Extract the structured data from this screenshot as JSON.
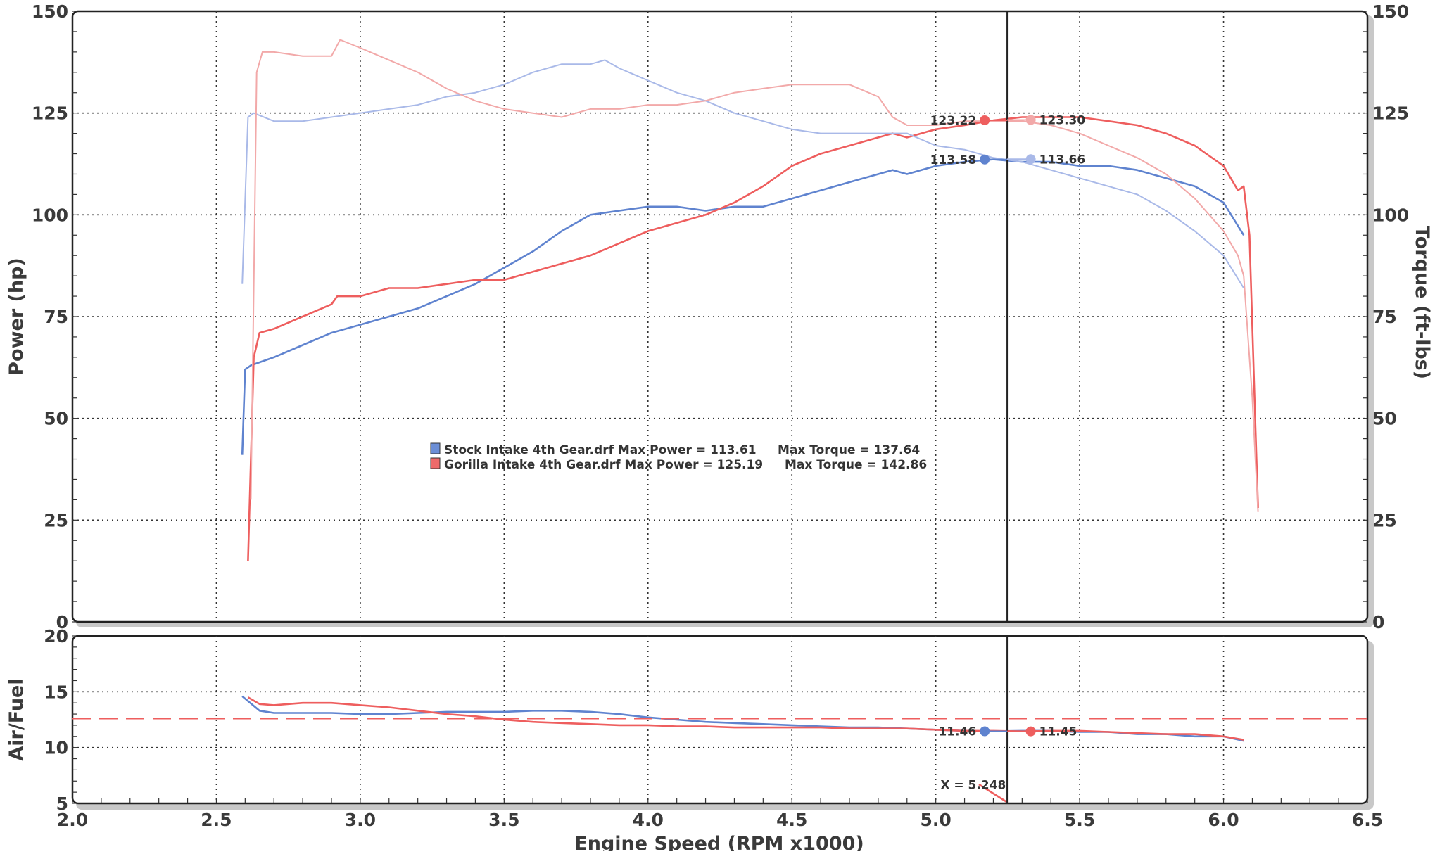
{
  "chart_data": [
    {
      "type": "line",
      "panel": "top",
      "xlabel": "Engine Speed (RPM x1000)",
      "ylabel": "Power (hp)",
      "ylabel_right": "Torque (ft-lbs)",
      "xlim": [
        2.0,
        6.5
      ],
      "ylim": [
        0,
        150
      ],
      "ylim_right": [
        0,
        150
      ],
      "x_ticks": [
        "2.0",
        "2.5",
        "3.0",
        "3.5",
        "4.0",
        "4.5",
        "5.0",
        "5.5",
        "6.0",
        "6.5"
      ],
      "y_ticks": [
        "0",
        "25",
        "50",
        "75",
        "100",
        "125",
        "150"
      ],
      "y_ticks_right": [
        "0",
        "25",
        "50",
        "75",
        "100",
        "125",
        "150"
      ],
      "grid": "dotted",
      "legend_position": "center",
      "legend": [
        {
          "color": "#6b8ed6",
          "text": "Stock Intake 4th Gear.drf Max Power = 113.61",
          "extra": "Max Torque = 137.64"
        },
        {
          "color": "#ee6a6a",
          "text": "Gorilla Intake 4th Gear.drf Max Power = 125.19",
          "extra": "Max Torque = 142.86"
        }
      ],
      "cursor_x": 5.248,
      "series": [
        {
          "name": "Stock Intake 4th Gear.drf",
          "measure": "power",
          "color": "#5f83cf",
          "x": [
            2.59,
            2.6,
            2.62,
            2.7,
            2.8,
            2.9,
            3.0,
            3.1,
            3.2,
            3.3,
            3.4,
            3.5,
            3.6,
            3.7,
            3.8,
            3.9,
            4.0,
            4.1,
            4.2,
            4.3,
            4.4,
            4.5,
            4.6,
            4.7,
            4.8,
            4.85,
            4.9,
            5.0,
            5.1,
            5.2,
            5.3,
            5.4,
            5.5,
            5.6,
            5.7,
            5.8,
            5.9,
            6.0,
            6.07
          ],
          "y": [
            41,
            62,
            63,
            65,
            68,
            71,
            73,
            75,
            77,
            80,
            83,
            87,
            91,
            96,
            100,
            101,
            102,
            102,
            101,
            102,
            102,
            104,
            106,
            108,
            110,
            111,
            110,
            112,
            113,
            113.6,
            113,
            113,
            112,
            112,
            111,
            109,
            107,
            103,
            95
          ]
        },
        {
          "name": "Gorilla Intake 4th Gear.drf",
          "measure": "power",
          "color": "#ee5e5e",
          "x": [
            2.61,
            2.63,
            2.65,
            2.7,
            2.8,
            2.9,
            2.92,
            3.0,
            3.1,
            3.2,
            3.3,
            3.4,
            3.5,
            3.6,
            3.7,
            3.8,
            3.9,
            4.0,
            4.1,
            4.2,
            4.3,
            4.4,
            4.5,
            4.6,
            4.7,
            4.8,
            4.85,
            4.9,
            5.0,
            5.1,
            5.2,
            5.3,
            5.4,
            5.5,
            5.6,
            5.7,
            5.8,
            5.9,
            6.0,
            6.05,
            6.07,
            6.09,
            6.11,
            6.12
          ],
          "y": [
            15,
            65,
            71,
            72,
            75,
            78,
            80,
            80,
            82,
            82,
            83,
            84,
            84,
            86,
            88,
            90,
            93,
            96,
            98,
            100,
            103,
            107,
            112,
            115,
            117,
            119,
            120,
            119,
            121,
            122,
            123.2,
            124,
            124,
            124,
            123,
            122,
            120,
            117,
            112,
            106,
            107,
            95,
            50,
            28
          ]
        },
        {
          "name": "Stock Intake 4th Gear.drf",
          "measure": "torque",
          "color": "#a9b9e8",
          "x": [
            2.59,
            2.61,
            2.63,
            2.7,
            2.8,
            2.9,
            3.0,
            3.1,
            3.2,
            3.3,
            3.4,
            3.5,
            3.6,
            3.7,
            3.8,
            3.85,
            3.9,
            4.0,
            4.1,
            4.2,
            4.3,
            4.4,
            4.5,
            4.6,
            4.7,
            4.8,
            4.9,
            5.0,
            5.1,
            5.2,
            5.3,
            5.4,
            5.5,
            5.6,
            5.7,
            5.8,
            5.9,
            6.0,
            6.07
          ],
          "y": [
            83,
            124,
            125,
            123,
            123,
            124,
            125,
            126,
            127,
            129,
            130,
            132,
            135,
            137,
            137,
            138,
            136,
            133,
            130,
            128,
            125,
            123,
            121,
            120,
            120,
            120,
            120,
            117,
            116,
            114,
            113,
            111,
            109,
            107,
            105,
            101,
            96,
            90,
            82
          ]
        },
        {
          "name": "Gorilla Intake 4th Gear.drf",
          "measure": "torque",
          "color": "#f2a9a9",
          "x": [
            2.62,
            2.64,
            2.66,
            2.7,
            2.8,
            2.9,
            2.93,
            3.0,
            3.1,
            3.2,
            3.3,
            3.4,
            3.5,
            3.6,
            3.7,
            3.8,
            3.9,
            4.0,
            4.1,
            4.2,
            4.3,
            4.4,
            4.5,
            4.6,
            4.7,
            4.8,
            4.85,
            4.9,
            5.0,
            5.1,
            5.2,
            5.3,
            5.4,
            5.5,
            5.6,
            5.7,
            5.8,
            5.9,
            6.0,
            6.05,
            6.07,
            6.1,
            6.12
          ],
          "y": [
            30,
            135,
            140,
            140,
            139,
            139,
            143,
            141,
            138,
            135,
            131,
            128,
            126,
            125,
            124,
            126,
            126,
            127,
            127,
            128,
            130,
            131,
            132,
            132,
            132,
            129,
            124,
            122,
            122,
            123,
            123,
            123,
            122,
            120,
            117,
            114,
            110,
            104,
            96,
            90,
            85,
            55,
            27
          ]
        }
      ],
      "markers": [
        {
          "x": 5.17,
          "y": 123.22,
          "label": "123.22",
          "color": "#ee5e5e",
          "label_side": "left"
        },
        {
          "x": 5.33,
          "y": 123.3,
          "label": "123.30",
          "color": "#f2a9a9",
          "label_side": "right"
        },
        {
          "x": 5.17,
          "y": 113.58,
          "label": "113.58",
          "color": "#5f83cf",
          "label_side": "left"
        },
        {
          "x": 5.33,
          "y": 113.66,
          "label": "113.66",
          "color": "#a9b9e8",
          "label_side": "right"
        }
      ]
    },
    {
      "type": "line",
      "panel": "bottom",
      "ylabel": "Air/Fuel",
      "xlim": [
        2.0,
        6.5
      ],
      "ylim": [
        5,
        20
      ],
      "y_ticks": [
        "5",
        "10",
        "15",
        "20"
      ],
      "grid": "dotted",
      "reference_line": {
        "y": 12.6,
        "style": "dashed",
        "color": "#ee5e5e"
      },
      "series": [
        {
          "name": "Stock Intake 4th Gear.drf",
          "measure": "air_fuel",
          "color": "#5f83cf",
          "x": [
            2.59,
            2.65,
            2.7,
            2.8,
            2.9,
            3.0,
            3.1,
            3.2,
            3.3,
            3.4,
            3.5,
            3.6,
            3.7,
            3.8,
            3.9,
            4.0,
            4.1,
            4.2,
            4.3,
            4.4,
            4.5,
            4.6,
            4.7,
            4.8,
            4.9,
            5.0,
            5.1,
            5.2,
            5.3,
            5.4,
            5.5,
            5.6,
            5.7,
            5.8,
            5.9,
            6.0,
            6.07
          ],
          "y": [
            14.6,
            13.3,
            13.1,
            13.1,
            13.1,
            13.0,
            13.0,
            13.1,
            13.2,
            13.2,
            13.2,
            13.3,
            13.3,
            13.2,
            13.0,
            12.7,
            12.5,
            12.3,
            12.2,
            12.1,
            12.0,
            11.9,
            11.8,
            11.8,
            11.7,
            11.6,
            11.5,
            11.46,
            11.5,
            11.5,
            11.4,
            11.4,
            11.2,
            11.2,
            11.0,
            11.0,
            10.6
          ]
        },
        {
          "name": "Gorilla Intake 4th Gear.drf",
          "measure": "air_fuel",
          "color": "#ee5e5e",
          "x": [
            2.61,
            2.65,
            2.7,
            2.8,
            2.9,
            3.0,
            3.1,
            3.2,
            3.3,
            3.4,
            3.5,
            3.6,
            3.7,
            3.8,
            3.9,
            4.0,
            4.1,
            4.2,
            4.3,
            4.4,
            4.5,
            4.6,
            4.7,
            4.8,
            4.9,
            5.0,
            5.1,
            5.2,
            5.3,
            5.4,
            5.5,
            5.6,
            5.7,
            5.8,
            5.9,
            6.0,
            6.07
          ],
          "y": [
            14.5,
            13.9,
            13.8,
            14.0,
            14.0,
            13.8,
            13.6,
            13.3,
            13.0,
            12.8,
            12.5,
            12.3,
            12.2,
            12.1,
            12.0,
            12.0,
            11.9,
            11.9,
            11.8,
            11.8,
            11.8,
            11.8,
            11.7,
            11.7,
            11.7,
            11.6,
            11.5,
            11.5,
            11.45,
            11.5,
            11.5,
            11.4,
            11.3,
            11.2,
            11.2,
            11.0,
            10.7
          ]
        },
        {
          "name": "cursor",
          "measure": "cursor_trace",
          "color": "#ee5e5e",
          "x": [
            5.15,
            5.248
          ],
          "y": [
            6.7,
            5.1
          ]
        }
      ],
      "markers": [
        {
          "x": 5.17,
          "y": 11.46,
          "label": "11.46",
          "color": "#5f83cf",
          "label_side": "left"
        },
        {
          "x": 5.33,
          "y": 11.45,
          "label": "11.45",
          "color": "#ee5e5e",
          "label_side": "right"
        }
      ],
      "cursor_label": {
        "x": 5.13,
        "y": 6.3,
        "text": "X = 5.248"
      }
    }
  ]
}
